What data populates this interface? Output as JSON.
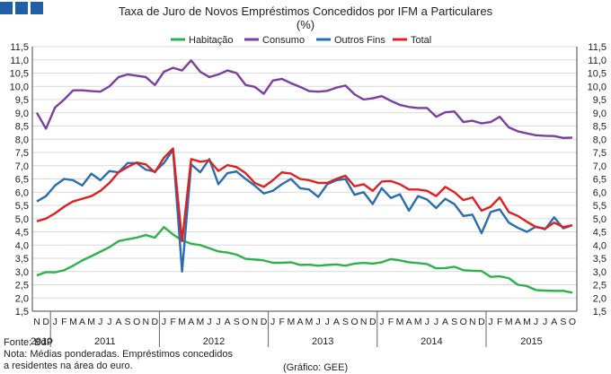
{
  "header": {
    "title_line1": "Taxa de Juro de Novos Empréstimos Concedidos por IFM a Particulares",
    "title_line2": "(%)"
  },
  "footer": {
    "source": "Fonte: BdP",
    "note_line1": "Nota: Médias ponderadas. Empréstimos concedidos",
    "note_line2": "a residentes na área do euro.",
    "credit": "(Gráfico: GEE)"
  },
  "colors": {
    "Habitação": "#2bb34a",
    "Consumo": "#7a3fa0",
    "Outros Fins": "#2a6db0",
    "Total": "#e02020",
    "grid": "#d9d9d9",
    "logo": "#1f5fa8"
  },
  "chart_data": {
    "type": "line",
    "title": "Taxa de Juro de Novos Empréstimos Concedidos por IFM a Particulares",
    "subtitle": "(%)",
    "xlabel": "",
    "ylabel": "",
    "ylim": [
      1.5,
      11.5
    ],
    "yticks": [
      "1,5",
      "2,0",
      "2,5",
      "3,0",
      "3,5",
      "4,0",
      "4,5",
      "5,0",
      "5,5",
      "6,0",
      "6,5",
      "7,0",
      "7,5",
      "8,0",
      "8,5",
      "9,0",
      "9,5",
      "10,0",
      "10,5",
      "11,0",
      "11,5"
    ],
    "legend_position": "top-center",
    "categories": [
      "N",
      "D",
      "J",
      "F",
      "M",
      "A",
      "M",
      "J",
      "J",
      "A",
      "S",
      "O",
      "N",
      "D",
      "J",
      "F",
      "M",
      "A",
      "M",
      "J",
      "J",
      "A",
      "S",
      "O",
      "N",
      "D",
      "J",
      "F",
      "M",
      "A",
      "M",
      "J",
      "J",
      "A",
      "S",
      "O",
      "N",
      "D",
      "J",
      "F",
      "M",
      "A",
      "M",
      "J",
      "J",
      "A",
      "S",
      "O",
      "N",
      "D",
      "J",
      "F",
      "M",
      "A",
      "M",
      "J",
      "J",
      "A",
      "S",
      "O"
    ],
    "years": [
      {
        "label": "2010",
        "start": 0,
        "end": 2
      },
      {
        "label": "2011",
        "start": 2,
        "end": 14
      },
      {
        "label": "2012",
        "start": 14,
        "end": 26
      },
      {
        "label": "2013",
        "start": 26,
        "end": 38
      },
      {
        "label": "2014",
        "start": 38,
        "end": 50
      },
      {
        "label": "2015",
        "start": 50,
        "end": 60
      }
    ],
    "series": [
      {
        "name": "Habitação",
        "values": [
          2.85,
          2.98,
          2.97,
          3.05,
          3.22,
          3.42,
          3.58,
          3.75,
          3.92,
          4.15,
          4.22,
          4.28,
          4.38,
          4.28,
          4.68,
          4.4,
          4.18,
          4.05,
          4.0,
          3.88,
          3.76,
          3.72,
          3.64,
          3.48,
          3.45,
          3.42,
          3.33,
          3.33,
          3.35,
          3.25,
          3.26,
          3.22,
          3.25,
          3.27,
          3.22,
          3.3,
          3.33,
          3.3,
          3.35,
          3.47,
          3.42,
          3.35,
          3.32,
          3.28,
          3.12,
          3.13,
          3.18,
          3.05,
          3.03,
          3.02,
          2.8,
          2.82,
          2.75,
          2.5,
          2.45,
          2.3,
          2.28,
          2.27,
          2.27,
          2.2
        ]
      },
      {
        "name": "Consumo",
        "values": [
          9.0,
          8.4,
          9.2,
          9.5,
          9.85,
          9.85,
          9.82,
          9.8,
          10.0,
          10.35,
          10.45,
          10.4,
          10.35,
          10.05,
          10.55,
          10.7,
          10.6,
          10.98,
          10.55,
          10.35,
          10.45,
          10.6,
          10.5,
          10.05,
          9.98,
          9.72,
          10.22,
          10.28,
          10.12,
          9.98,
          9.82,
          9.8,
          9.83,
          9.95,
          10.03,
          9.7,
          9.5,
          9.55,
          9.63,
          9.45,
          9.3,
          9.22,
          9.18,
          9.18,
          8.85,
          9.02,
          9.05,
          8.65,
          8.7,
          8.6,
          8.65,
          8.85,
          8.45,
          8.3,
          8.22,
          8.15,
          8.13,
          8.12,
          8.05,
          8.06
        ]
      },
      {
        "name": "Outros Fins",
        "values": [
          5.65,
          5.85,
          6.25,
          6.5,
          6.45,
          6.25,
          6.7,
          6.45,
          6.8,
          6.75,
          7.1,
          7.1,
          6.85,
          6.78,
          7.1,
          7.6,
          3.0,
          7.05,
          6.75,
          7.25,
          6.3,
          6.72,
          6.78,
          6.5,
          6.25,
          5.95,
          6.05,
          6.3,
          6.5,
          6.15,
          6.1,
          5.82,
          6.3,
          6.45,
          6.5,
          5.9,
          6.0,
          5.55,
          6.15,
          5.78,
          5.92,
          5.3,
          5.85,
          5.72,
          5.4,
          5.75,
          5.55,
          5.1,
          5.15,
          4.45,
          5.25,
          5.35,
          4.85,
          4.65,
          4.5,
          4.7,
          4.6,
          5.05,
          4.63,
          4.75
        ]
      },
      {
        "name": "Total",
        "values": [
          4.9,
          5.0,
          5.2,
          5.45,
          5.65,
          5.75,
          5.85,
          6.05,
          6.35,
          6.75,
          6.95,
          7.12,
          7.05,
          6.75,
          7.3,
          7.65,
          4.15,
          7.25,
          7.15,
          7.2,
          6.8,
          7.02,
          6.95,
          6.72,
          6.35,
          6.2,
          6.45,
          6.75,
          6.7,
          6.5,
          6.45,
          6.35,
          6.35,
          6.5,
          6.62,
          6.22,
          6.3,
          6.05,
          6.4,
          6.42,
          6.3,
          6.1,
          6.1,
          6.05,
          5.85,
          6.2,
          6.0,
          5.7,
          5.8,
          5.3,
          5.45,
          5.8,
          5.25,
          5.1,
          4.88,
          4.68,
          4.62,
          4.85,
          4.68,
          4.75
        ]
      }
    ]
  }
}
